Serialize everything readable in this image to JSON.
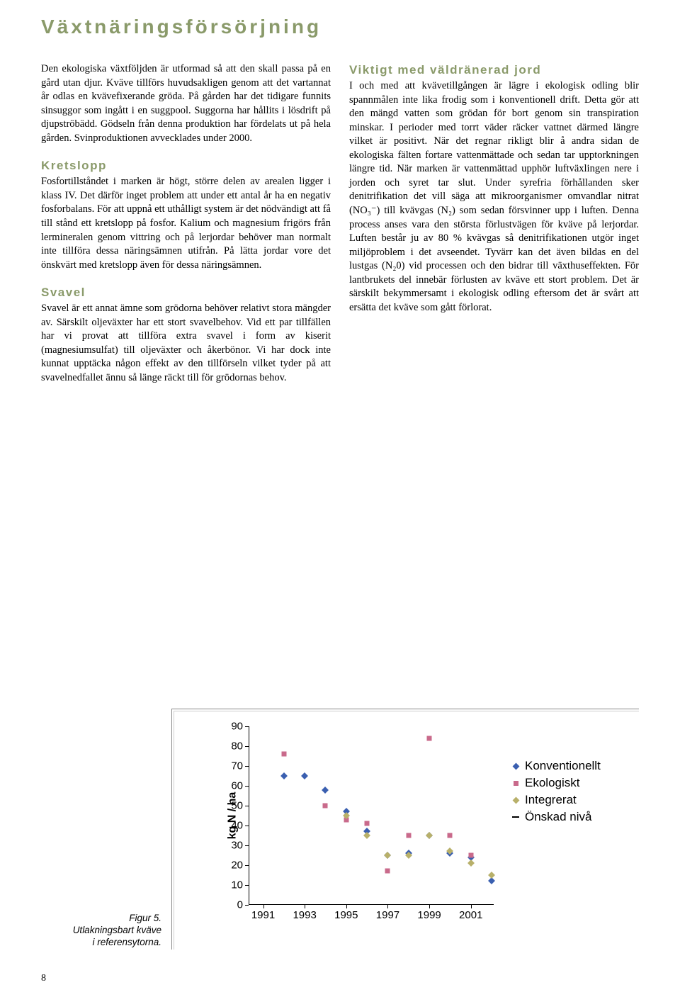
{
  "title": "Växtnäringsförsörjning",
  "left": {
    "intro": "Den ekologiska växtföljden är utformad så att den skall passa på en gård utan djur. Kväve tillförs huvudsakligen genom att det vartannat år odlas en kvävefixerande gröda. På gården har det tidigare funnits sinsuggor som ingått i en suggpool. Suggorna har hållits i lösdrift på djupströbädd. Gödseln från denna produktion har fördelats ut på hela gården. Svinproduktionen avvecklades under 2000.",
    "kretslopp_h": "Kretslopp",
    "kretslopp": "Fosfortillståndet i marken är högt, större delen av arealen ligger i klass IV. Det därför inget problem att under ett antal år ha en negativ fosforbalans. För att uppnå ett uthålligt system är det nödvändigt att få till stånd ett kretslopp på fosfor. Kalium och magnesium frigörs från lermineralen genom vittring och på lerjordar behöver man normalt inte tillföra dessa näringsämnen utifrån. På lätta jordar vore det önskvärt med kretslopp även för dessa näringsämnen.",
    "svavel_h": "Svavel",
    "svavel": "Svavel är ett annat ämne som grödorna behöver relativt stora mängder av. Särskilt oljeväxter har ett stort svavelbehov. Vid ett par tillfällen har vi provat att tillföra extra svavel i form av kiserit (magnesiumsulfat) till oljeväxter och åkerbönor. Vi har dock inte kunnat upptäcka någon effekt av den tillförseln vilket tyder på att svavelnedfallet ännu så länge räckt till för grödornas behov."
  },
  "right": {
    "viktigt_h": "Viktigt med väldränerad jord",
    "viktigt": "I och med att kvävetillgången är lägre i ekologisk odling blir spannmålen inte lika frodig som i konventionell drift. Detta gör att den mängd vatten som grödan för bort genom sin transpiration minskar. I perioder med torrt väder räcker vattnet därmed längre vilket är positivt. När det regnar rikligt blir å andra sidan de ekologiska fälten fortare vattenmättade och sedan tar upptorkningen längre tid. När marken är vattenmättad upphör luftväxlingen nere i jorden och syret tar slut. Under syrefria förhållanden sker denitrifikation det vill säga att mikroorganismer omvandlar nitrat (NO₃⁻) till kvävgas (N₂) som sedan försvinner upp i luften. Denna process anses vara den största förlustvägen för kväve på lerjordar. Luften består ju av 80 % kvävgas så denitrifikationen utgör inget miljöproblem i det avseendet. Tyvärr kan det även bildas en del lustgas (N₂0) vid processen och den bidrar till växthuseffekten. För lantbrukets del innebär förlusten av kväve ett stort problem. Det är särskilt bekymmersamt i ekologisk odling eftersom det är svårt att ersätta det kväve som gått förlorat."
  },
  "chart": {
    "type": "scatter",
    "ylabel": "kg N / ha",
    "ylim": [
      0,
      90
    ],
    "ytick_step": 10,
    "xlim": [
      1990.3,
      2002.1
    ],
    "xticks": [
      1991,
      1993,
      1995,
      1997,
      1999,
      2001
    ],
    "background_color": "#ffffff",
    "axis_color": "#000000",
    "marker_size": 7,
    "series": [
      {
        "name": "Konventionellt",
        "color": "#3a5fb0",
        "shape": "diamond",
        "points": [
          [
            1992,
            65
          ],
          [
            1993,
            65
          ],
          [
            1994,
            58
          ],
          [
            1995,
            47
          ],
          [
            1996,
            37
          ],
          [
            1997,
            25
          ],
          [
            1998,
            26
          ],
          [
            1999,
            35
          ],
          [
            2000,
            26
          ],
          [
            2001,
            24
          ],
          [
            2002,
            12
          ]
        ]
      },
      {
        "name": "Ekologiskt",
        "color": "#c96a8b",
        "shape": "square",
        "points": [
          [
            1992,
            76
          ],
          [
            1994,
            50
          ],
          [
            1995,
            43
          ],
          [
            1996,
            41
          ],
          [
            1997,
            17
          ],
          [
            1998,
            35
          ],
          [
            1999,
            84
          ],
          [
            2000,
            35
          ],
          [
            2001,
            25
          ]
        ]
      },
      {
        "name": "Integrerat",
        "color": "#b8b06a",
        "shape": "diamond",
        "points": [
          [
            1995,
            45
          ],
          [
            1996,
            35
          ],
          [
            1997,
            25
          ],
          [
            1998,
            25
          ],
          [
            1999,
            35
          ],
          [
            2000,
            27
          ],
          [
            2001,
            21
          ],
          [
            2002,
            15
          ]
        ]
      },
      {
        "name": "Önskad nivå",
        "color": "#000000",
        "shape": "line",
        "points": []
      }
    ]
  },
  "caption": {
    "l1": "Figur 5.",
    "l2": "Utlakningsbart kväve",
    "l3": "i referensytorna."
  },
  "legend": {
    "items": [
      "Konventionellt",
      "Ekologiskt",
      "Integrerat",
      "Önskad nivå"
    ]
  },
  "page_number": "8"
}
